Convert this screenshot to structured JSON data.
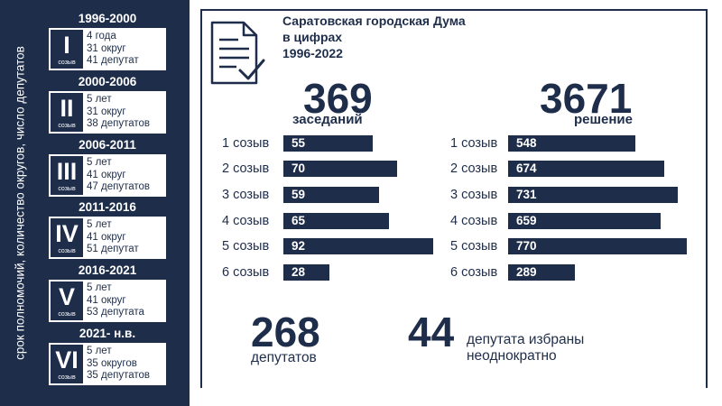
{
  "sidebar": {
    "vertical_label": "срок полномочий, количество округов, число депутатов",
    "convocations": [
      {
        "years": "1996-2000",
        "roman": "I",
        "label": "созыв",
        "lines": [
          "4 года",
          "31 округ",
          "41 депутат"
        ]
      },
      {
        "years": "2000-2006",
        "roman": "II",
        "label": "созыв",
        "lines": [
          "5 лет",
          "31 округ",
          "38 депутатов"
        ]
      },
      {
        "years": "2006-2011",
        "roman": "III",
        "label": "созыв",
        "lines": [
          "5 лет",
          "41 округ",
          "47 депутатов"
        ]
      },
      {
        "years": "2011-2016",
        "roman": "IV",
        "label": "созыв",
        "lines": [
          "5 лет",
          "41 округ",
          "51 депутат"
        ]
      },
      {
        "years": "2016-2021",
        "roman": "V",
        "label": "созыв",
        "lines": [
          "5 лет",
          "41 округ",
          "53 депутата"
        ]
      },
      {
        "years": "2021- н.в.",
        "roman": "VI",
        "label": "созыв",
        "lines": [
          "5 лет",
          "35 округов",
          "35 депутатов"
        ]
      }
    ]
  },
  "header": {
    "title_lines": [
      "Саратовская городская Дума",
      "в цифрах",
      "1996-2022"
    ],
    "icon": "document-check-icon"
  },
  "chart_data": [
    {
      "type": "bar",
      "orientation": "horizontal",
      "title": "369",
      "subtitle": "заседаний",
      "categories": [
        "1 созыв",
        "2 созыв",
        "3 созыв",
        "4 созыв",
        "5 созыв",
        "6 созыв"
      ],
      "values": [
        55,
        70,
        59,
        65,
        92,
        28
      ],
      "xlim": [
        0,
        92
      ]
    },
    {
      "type": "bar",
      "orientation": "horizontal",
      "title": "3671",
      "subtitle": "решение",
      "categories": [
        "1 созыв",
        "2 созыв",
        "3 созыв",
        "4 созыв",
        "5 созыв",
        "6 созыв"
      ],
      "values": [
        548,
        674,
        731,
        659,
        770,
        289
      ],
      "xlim": [
        0,
        770
      ]
    }
  ],
  "stats": [
    {
      "value": "268",
      "label": "депутатов"
    },
    {
      "value": "44",
      "label_lines": [
        "депутата избраны",
        "неоднократно"
      ]
    }
  ],
  "colors": {
    "navy": "#1e2d4a",
    "white": "#ffffff"
  }
}
